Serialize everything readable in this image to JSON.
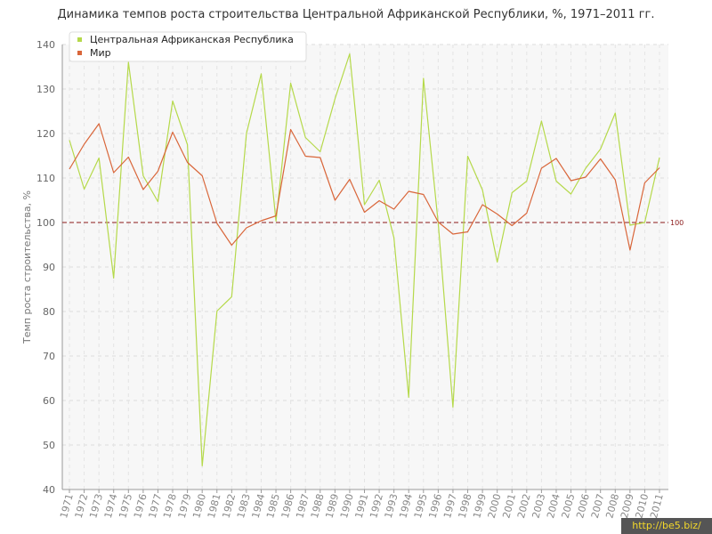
{
  "chart_data": {
    "type": "line",
    "title": "Динамика темпов роста строительства Центральной Африканской Республики, %, 1971–2011 гг.",
    "ylabel": "Темп роста строительства, %",
    "xlabel": "",
    "ylim": [
      40,
      140
    ],
    "yticks": [
      40,
      50,
      60,
      70,
      80,
      90,
      100,
      110,
      120,
      130,
      140
    ],
    "grid": true,
    "legend_position": "top-left",
    "reference_line": {
      "value": 100,
      "label": "100",
      "color": "#8b1a1a"
    },
    "categories": [
      "1971",
      "1972",
      "1973",
      "1974",
      "1975",
      "1976",
      "1977",
      "1978",
      "1979",
      "1980",
      "1981",
      "1982",
      "1983",
      "1984",
      "1985",
      "1986",
      "1987",
      "1988",
      "1989",
      "1990",
      "1991",
      "1992",
      "1993",
      "1994",
      "1995",
      "1996",
      "1997",
      "1998",
      "1999",
      "2000",
      "2001",
      "2002",
      "2003",
      "2004",
      "2005",
      "2006",
      "2007",
      "2008",
      "2009",
      "2010",
      "2011"
    ],
    "series": [
      {
        "name": "Центральная Африканская Республика",
        "color": "#b5d94a",
        "values": [
          118.5,
          107.5,
          114.5,
          87.5,
          136,
          110.5,
          104.7,
          127.3,
          117.5,
          45.3,
          80.1,
          83.3,
          120,
          133.4,
          100.3,
          131.3,
          119.1,
          115.9,
          127.8,
          137.9,
          104,
          109.5,
          96.6,
          60.7,
          132.4,
          99.8,
          58.5,
          114.9,
          107.3,
          91.1,
          106.7,
          109.3,
          122.8,
          109.3,
          106.4,
          112.2,
          116.5,
          124.6,
          99.4,
          100,
          114.6
        ]
      },
      {
        "name": "Мир",
        "color": "#d9663a",
        "values": [
          112,
          117.6,
          122.2,
          111.2,
          114.7,
          107.4,
          111.5,
          120.3,
          113.5,
          110.5,
          99.8,
          94.9,
          98.8,
          100.4,
          101.5,
          120.9,
          114.9,
          114.6,
          105,
          109.7,
          102.3,
          104.9,
          103,
          107,
          106.3,
          100.1,
          97.4,
          97.9,
          104,
          101.9,
          99.3,
          102.1,
          112.2,
          114.4,
          109.4,
          110.2,
          114.3,
          109.6,
          93.8,
          108.9,
          112.3
        ]
      }
    ]
  },
  "watermark": "http://be5.biz/"
}
